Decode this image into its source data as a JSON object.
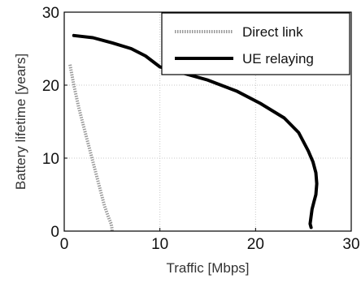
{
  "chart_data": {
    "type": "line",
    "xlabel": "Traffic [Mbps]",
    "ylabel": "Battery lifetime [years]",
    "xlim": [
      0,
      30
    ],
    "ylim": [
      0,
      30
    ],
    "xticks": [
      "0",
      "10",
      "20",
      "30"
    ],
    "yticks": [
      "0",
      "10",
      "20",
      "30"
    ],
    "grid": true,
    "legend_position": "top-right",
    "series": [
      {
        "name": "Direct link",
        "style": "dotted",
        "color": "#999999",
        "x": [
          0.6,
          1.0,
          1.5,
          2.0,
          2.5,
          3.0,
          3.4,
          3.8,
          4.2,
          4.6,
          4.9,
          5.0,
          5.0
        ],
        "y": [
          22.8,
          20.0,
          17.0,
          14.5,
          12.0,
          9.5,
          7.5,
          5.5,
          3.5,
          2.0,
          1.0,
          0.3,
          0.0
        ]
      },
      {
        "name": "UE relaying",
        "style": "solid",
        "color": "#000000",
        "x": [
          1.0,
          3.0,
          5.0,
          7.0,
          8.5,
          10.0,
          12.0,
          15.0,
          18.0,
          20.5,
          23.0,
          24.5,
          25.5,
          26.0,
          26.3,
          26.4,
          26.3,
          26.1,
          25.9,
          25.8,
          25.7,
          25.8
        ],
        "y": [
          26.8,
          26.5,
          25.8,
          25.0,
          24.0,
          22.5,
          21.8,
          20.7,
          19.2,
          17.5,
          15.5,
          13.5,
          11.0,
          9.5,
          8.0,
          6.5,
          5.0,
          4.0,
          3.0,
          2.0,
          1.0,
          0.5
        ]
      }
    ]
  }
}
